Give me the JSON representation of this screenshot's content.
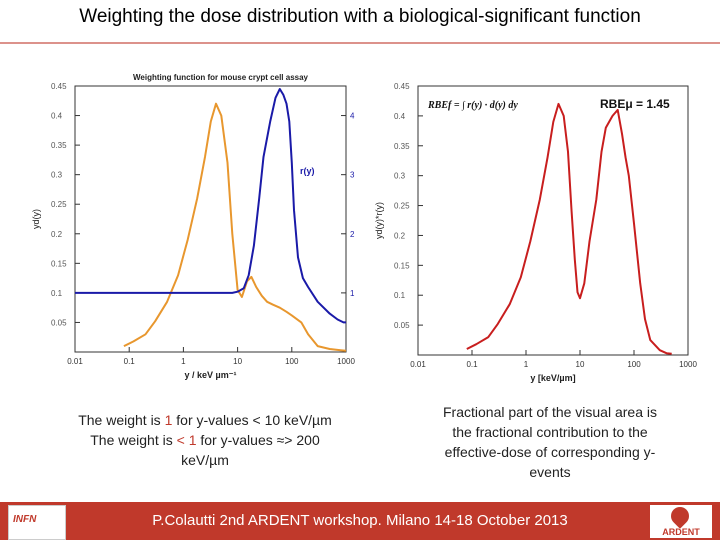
{
  "slide": {
    "title": "Weighting the dose distribution with a biological-significant function",
    "footer": "P.Colautti 2nd ARDENT workshop. Milano 14-18 October 2013",
    "left_logo_text": "INFN",
    "right_logo_text": "ARDENT",
    "colors": {
      "accent": "#c0392b",
      "orange": "#e8972e",
      "blue": "#1a1aa8",
      "red": "#c81e1e"
    }
  },
  "captions": {
    "left": {
      "line1_pre": "The weight is ",
      "line1_value": "1",
      "line1_post": " for y-values < 10 keV/µm",
      "line2_pre": "The weight is ",
      "line2_value": "< 1",
      "line2_post": " for  y-values  ≈> 200",
      "line3": "keV/µm"
    },
    "right": {
      "line1": "Fractional part of the visual area is",
      "line2": "the fractional contribution  to the",
      "line3": "effective-dose of corresponding y-",
      "line4": "events"
    }
  },
  "chart_data": [
    {
      "type": "line",
      "title": "Weighting function for mouse crypt cell assay",
      "xlabel": "y / keV µm⁻¹",
      "ylabel": "yd(y)",
      "y2label": "",
      "xscale": "log",
      "xlim": [
        0.01,
        1000
      ],
      "ylim": [
        0,
        0.45
      ],
      "y2lim": [
        0,
        4.5
      ],
      "xticks": [
        "0.01",
        "0.1",
        "1",
        "10",
        "100",
        "1000"
      ],
      "yticks": [
        "0.05",
        "0.1",
        "0.15",
        "0.2",
        "0.25",
        "0.3",
        "0.35",
        "0.4",
        "0.45"
      ],
      "y2ticks": [
        "1",
        "2",
        "3",
        "4"
      ],
      "annotations": [
        "r(y)"
      ],
      "series": [
        {
          "name": "",
          "color": "#e8972e",
          "axis": "left",
          "x": [
            0.08,
            0.12,
            0.2,
            0.3,
            0.5,
            0.8,
            1.2,
            1.8,
            2.5,
            3.2,
            4,
            5,
            6.5,
            8,
            10,
            12,
            15,
            18,
            22,
            28,
            35,
            45,
            60,
            80,
            100,
            150,
            200,
            300,
            500,
            800,
            1000
          ],
          "values": [
            0.01,
            0.018,
            0.03,
            0.052,
            0.085,
            0.13,
            0.19,
            0.26,
            0.33,
            0.39,
            0.42,
            0.4,
            0.32,
            0.2,
            0.105,
            0.093,
            0.12,
            0.127,
            0.11,
            0.095,
            0.085,
            0.08,
            0.075,
            0.068,
            0.062,
            0.05,
            0.03,
            0.01,
            0.005,
            0.003,
            0.002
          ]
        },
        {
          "name": "r(y)",
          "color": "#1a1aa8",
          "axis": "right",
          "x": [
            0.01,
            0.1,
            1,
            5,
            8,
            10,
            13,
            16,
            20,
            25,
            30,
            40,
            50,
            60,
            70,
            80,
            90,
            100,
            110,
            130,
            160,
            200,
            300,
            500,
            700,
            900,
            1000
          ],
          "values": [
            1.0,
            1.0,
            1.0,
            1.0,
            1.0,
            1.02,
            1.08,
            1.3,
            1.8,
            2.6,
            3.3,
            3.9,
            4.3,
            4.45,
            4.35,
            4.2,
            3.9,
            3.2,
            2.4,
            1.6,
            1.25,
            1.1,
            0.85,
            0.65,
            0.55,
            0.5,
            0.5
          ]
        }
      ]
    },
    {
      "type": "line",
      "title": "",
      "xlabel": "y [keV/µm]",
      "ylabel": "yd(y)*r(y)",
      "xscale": "log",
      "xlim": [
        0.01,
        1000
      ],
      "ylim": [
        0,
        0.45
      ],
      "xticks": [
        "0.01",
        "0.1",
        "1",
        "10",
        "100",
        "1000"
      ],
      "yticks": [
        "0.05",
        "0.1",
        "0.15",
        "0.2",
        "0.25",
        "0.3",
        "0.35",
        "0.4",
        "0.45"
      ],
      "annotations": [
        "RBEμ = 1.45",
        "RBEf = ∫ r(y) · d(y) dy"
      ],
      "series": [
        {
          "name": "",
          "color": "#c81e1e",
          "x": [
            0.08,
            0.12,
            0.2,
            0.3,
            0.5,
            0.8,
            1.2,
            1.8,
            2.5,
            3.2,
            4,
            5,
            6,
            7,
            8,
            9,
            10,
            12,
            15,
            20,
            25,
            30,
            40,
            50,
            60,
            70,
            80,
            100,
            130,
            160,
            200,
            300,
            400,
            500
          ],
          "values": [
            0.01,
            0.018,
            0.03,
            0.052,
            0.085,
            0.13,
            0.19,
            0.26,
            0.33,
            0.39,
            0.42,
            0.4,
            0.34,
            0.24,
            0.16,
            0.105,
            0.095,
            0.12,
            0.19,
            0.26,
            0.34,
            0.38,
            0.4,
            0.41,
            0.37,
            0.33,
            0.3,
            0.22,
            0.12,
            0.06,
            0.025,
            0.008,
            0.003,
            0.002
          ]
        }
      ]
    }
  ]
}
